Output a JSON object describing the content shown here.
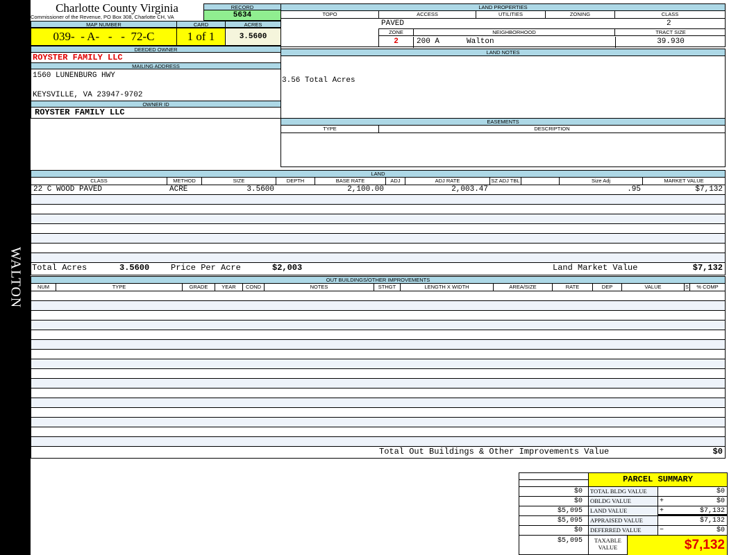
{
  "side_label": "WALTON",
  "header": {
    "title": "Charlotte County Virginia",
    "subtitle": "Commissioner of the Revenue, PO Box 308, Charlotte CH, VA",
    "record_label": "RECORD",
    "record": "5634"
  },
  "map": {
    "map_label": "MAP NUMBER",
    "map_number": "039-  - A-   -   -  72-C",
    "card_label": "CARD",
    "card": "1 of 1",
    "acres_label": "ACRES",
    "acres": "3.5600"
  },
  "owner": {
    "deeded_label": "DEEDED OWNER",
    "deeded": "ROYSTER FAMILY LLC",
    "mailing_label": "MAILING ADDRESS",
    "address1": "1560 LUNENBURG HWY",
    "address2": "KEYSVILLE, VA 23947-9702",
    "owner_id_label": "OWNER ID",
    "owner_id": "ROYSTER FAMILY LLC"
  },
  "land_properties": {
    "label": "LAND PROPERTIES",
    "topo": "TOPO",
    "access": "ACCESS",
    "utilities": "UTILITIES",
    "zoning": "ZONING",
    "class": "CLASS",
    "access_value": "PAVED",
    "class_value": "2",
    "zone_label": "ZONE",
    "neighborhood_label": "NEIGHBORHOOD",
    "tract_label": "TRACT SIZE",
    "zone": "2",
    "neighborhood_code": "200 A",
    "neighborhood": "Walton",
    "tract_size": "39.930"
  },
  "land_notes": {
    "label": "LAND NOTES",
    "text": "3.56 Total Acres"
  },
  "easements": {
    "label": "EASEMENTS",
    "type": "TYPE",
    "description": "DESCRIPTION"
  },
  "land": {
    "label": "LAND",
    "columns": [
      "CLASS",
      "METHOD",
      "SIZE",
      "DEPTH",
      "BASE RATE",
      "ADJ",
      "ADJ RATE",
      "SZ ADJ TBL",
      "",
      "Size Adj",
      "MARKET VALUE"
    ],
    "rows": [
      [
        "22 C WOOD PAVED",
        "ACRE",
        "3.5600",
        "",
        "2,100.00",
        "",
        "2,003.47",
        "",
        "",
        ".95",
        "$7,132"
      ]
    ],
    "total_acres_label": "Total Acres",
    "total_acres": "3.5600",
    "ppa_label": "Price Per Acre",
    "ppa": "$2,003",
    "market_label": "Land Market Value",
    "market": "$7,132"
  },
  "outbuildings": {
    "label": "OUT BUILDINGS/OTHER IMPROVEMENTS",
    "columns": [
      "NUM",
      "TYPE",
      "GRADE",
      "YEAR",
      "COND",
      "NOTES",
      "STHGT",
      "LENGTH X WIDTH",
      "AREA/SIZE",
      "RATE",
      "DEP",
      "VALUE",
      "S",
      "% COMP"
    ],
    "rows": [],
    "total_label": "Total Out Buildings & Other Improvements Value",
    "total": "$0"
  },
  "summary": {
    "title": "PARCEL SUMMARY",
    "rows": [
      {
        "prior": "$0",
        "label": "TOTAL BLDG VALUE",
        "op": "",
        "value": "$0"
      },
      {
        "prior": "$0",
        "label": "OBLDG VALUE",
        "op": "+",
        "value": "$0"
      },
      {
        "prior": "$5,095",
        "label": "LAND VALUE",
        "op": "+",
        "value": "$7,132"
      },
      {
        "prior": "$5,095",
        "label": "APPRAISED VALUE",
        "op": "",
        "value": "$7,132"
      },
      {
        "prior": "$0",
        "label": "DEFERRED VALUE",
        "op": "−",
        "value": "$0"
      }
    ],
    "taxable_prior": "$5,095",
    "taxable_label": "TAXABLE VALUE",
    "taxable": "$7,132"
  },
  "colors": {
    "header": "#add8e6",
    "map_bg": "#ffff00",
    "record_bg": "#90ee90",
    "acres_bg": "#f5f5dc",
    "accent": "#e00000"
  }
}
